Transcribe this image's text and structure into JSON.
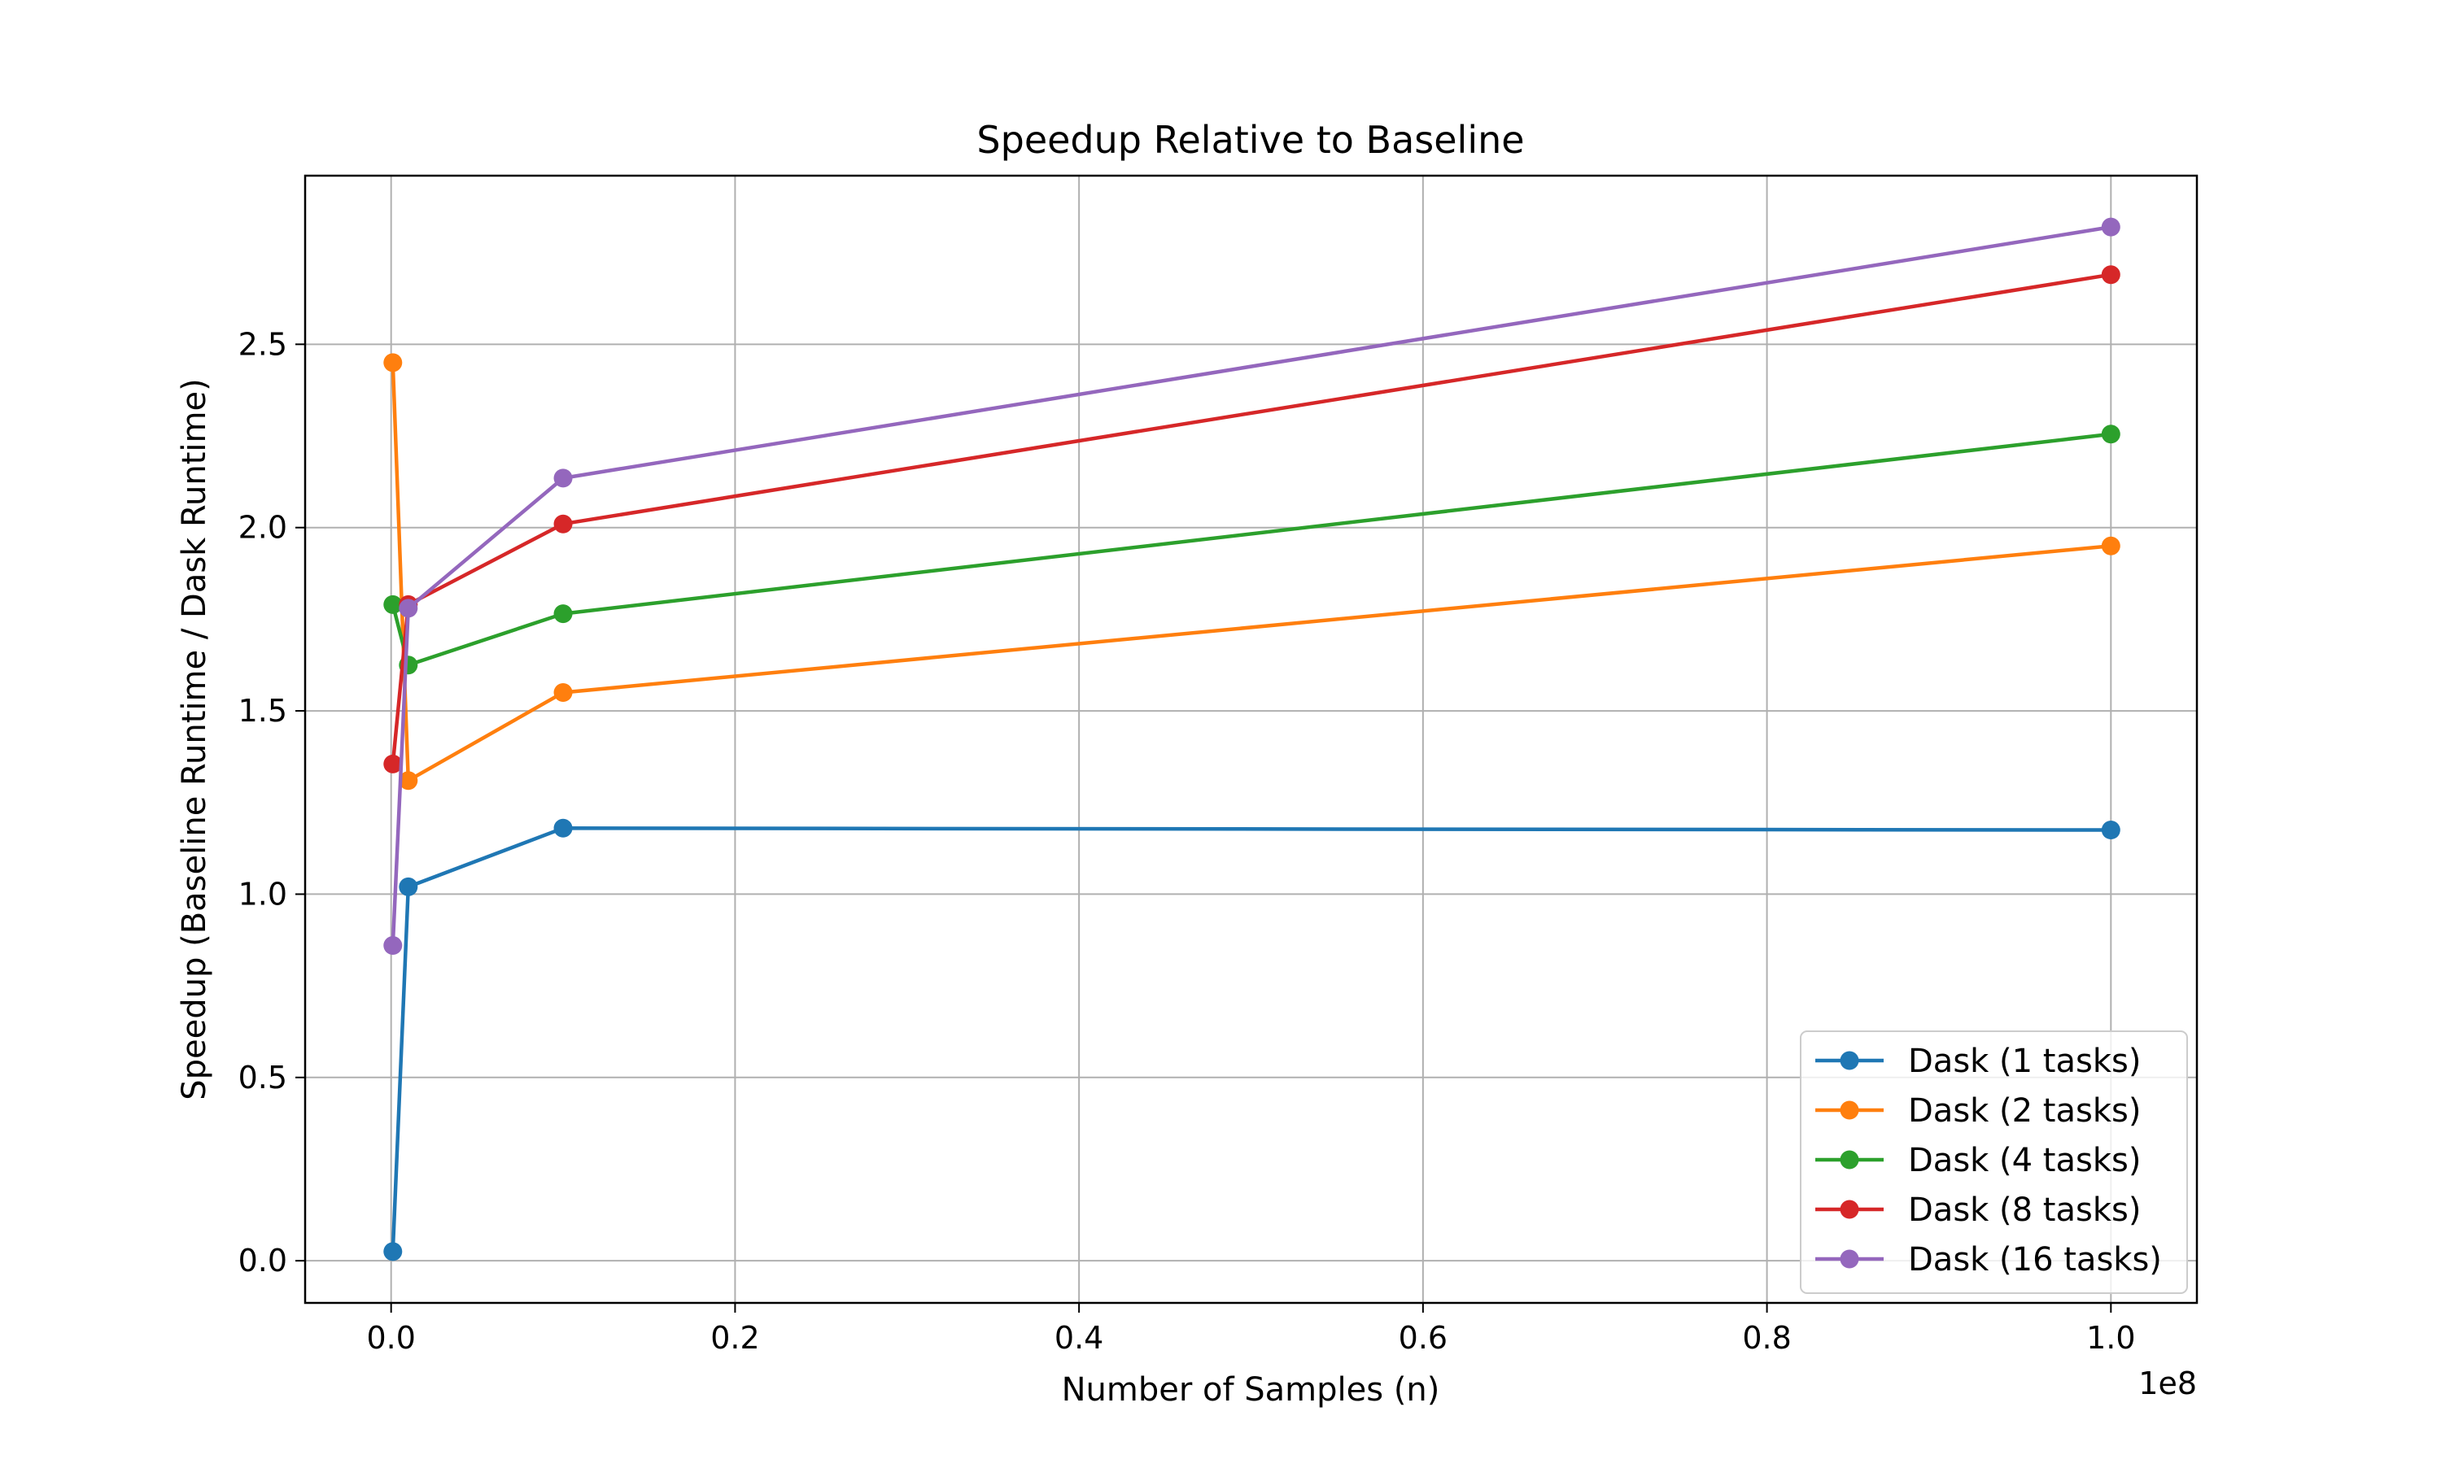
{
  "chart_data": {
    "type": "line",
    "title": "Speedup Relative to Baseline",
    "xlabel": "Number of Samples (n)",
    "ylabel": "Speedup (Baseline Runtime / Dask Runtime)",
    "x_scale_offset_label": "1e8",
    "x_tick_labels": [
      "0.0",
      "0.2",
      "0.4",
      "0.6",
      "0.8",
      "1.0"
    ],
    "x_tick_values": [
      0,
      20000000,
      40000000,
      60000000,
      80000000,
      100000000
    ],
    "y_tick_labels": [
      "0.0",
      "0.5",
      "1.0",
      "1.5",
      "2.0",
      "2.5"
    ],
    "y_tick_values": [
      0,
      0.5,
      1.0,
      1.5,
      2.0,
      2.5
    ],
    "xlim": [
      -5000000,
      105000000
    ],
    "ylim": [
      -0.115,
      2.96
    ],
    "grid": true,
    "legend_position": "lower-right",
    "x": [
      100000,
      1000000,
      10000000,
      100000000
    ],
    "series": [
      {
        "name": "Dask (1 tasks)",
        "color": "#1f77b4",
        "values": [
          0.025,
          1.02,
          1.18,
          1.175
        ]
      },
      {
        "name": "Dask (2 tasks)",
        "color": "#ff7f0e",
        "values": [
          2.45,
          1.31,
          1.55,
          1.95
        ]
      },
      {
        "name": "Dask (4 tasks)",
        "color": "#2ca02c",
        "values": [
          1.79,
          1.625,
          1.765,
          2.255
        ]
      },
      {
        "name": "Dask (8 tasks)",
        "color": "#d62728",
        "values": [
          1.355,
          1.79,
          2.01,
          2.69
        ]
      },
      {
        "name": "Dask (16 tasks)",
        "color": "#9467bd",
        "values": [
          0.86,
          1.78,
          2.135,
          2.82
        ]
      }
    ]
  }
}
